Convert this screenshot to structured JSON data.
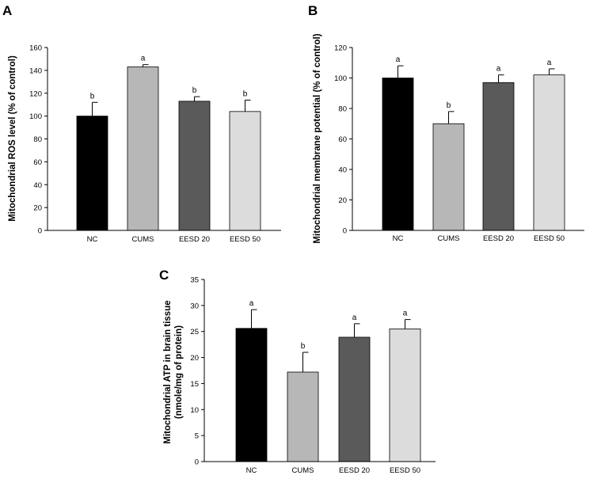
{
  "colors": {
    "bar_colors": [
      "#000000",
      "#b7b7b7",
      "#5a5a5a",
      "#dcdcdc"
    ]
  },
  "chart_data": [
    {
      "panel": "A",
      "type": "bar",
      "title": "",
      "xlabel": "",
      "ylabel": "Mitochondrial ROS level (% of control)",
      "ylim": [
        0,
        160
      ],
      "yticks": [
        0,
        20,
        40,
        60,
        80,
        100,
        120,
        140,
        160
      ],
      "categories": [
        "NC",
        "CUMS",
        "EESD 20",
        "EESD 50"
      ],
      "values": [
        100,
        143,
        113,
        104
      ],
      "errors": [
        12,
        2,
        4,
        10
      ],
      "significance": [
        "b",
        "a",
        "b",
        "b"
      ]
    },
    {
      "panel": "B",
      "type": "bar",
      "title": "",
      "xlabel": "",
      "ylabel": "Mitochondrial membrane potential (% of control)",
      "ylim": [
        0,
        120
      ],
      "yticks": [
        0,
        20,
        40,
        60,
        80,
        100,
        120
      ],
      "categories": [
        "NC",
        "CUMS",
        "EESD 20",
        "EESD 50"
      ],
      "values": [
        100,
        70,
        97,
        102
      ],
      "errors": [
        8,
        8,
        5,
        4
      ],
      "significance": [
        "a",
        "b",
        "a",
        "a"
      ]
    },
    {
      "panel": "C",
      "type": "bar",
      "title": "",
      "xlabel": "",
      "ylabel_line1": "Mitochondrial ATP in brain tissue",
      "ylabel_line2": "(nmole/mg of protein)",
      "ylim": [
        0,
        35
      ],
      "yticks": [
        0,
        5,
        10,
        15,
        20,
        25,
        30,
        35
      ],
      "categories": [
        "NC",
        "CUMS",
        "EESD 20",
        "EESD 50"
      ],
      "values": [
        25.6,
        17.2,
        23.9,
        25.5
      ],
      "errors": [
        3.6,
        3.8,
        2.6,
        1.8
      ],
      "significance": [
        "a",
        "b",
        "a",
        "a"
      ]
    }
  ]
}
